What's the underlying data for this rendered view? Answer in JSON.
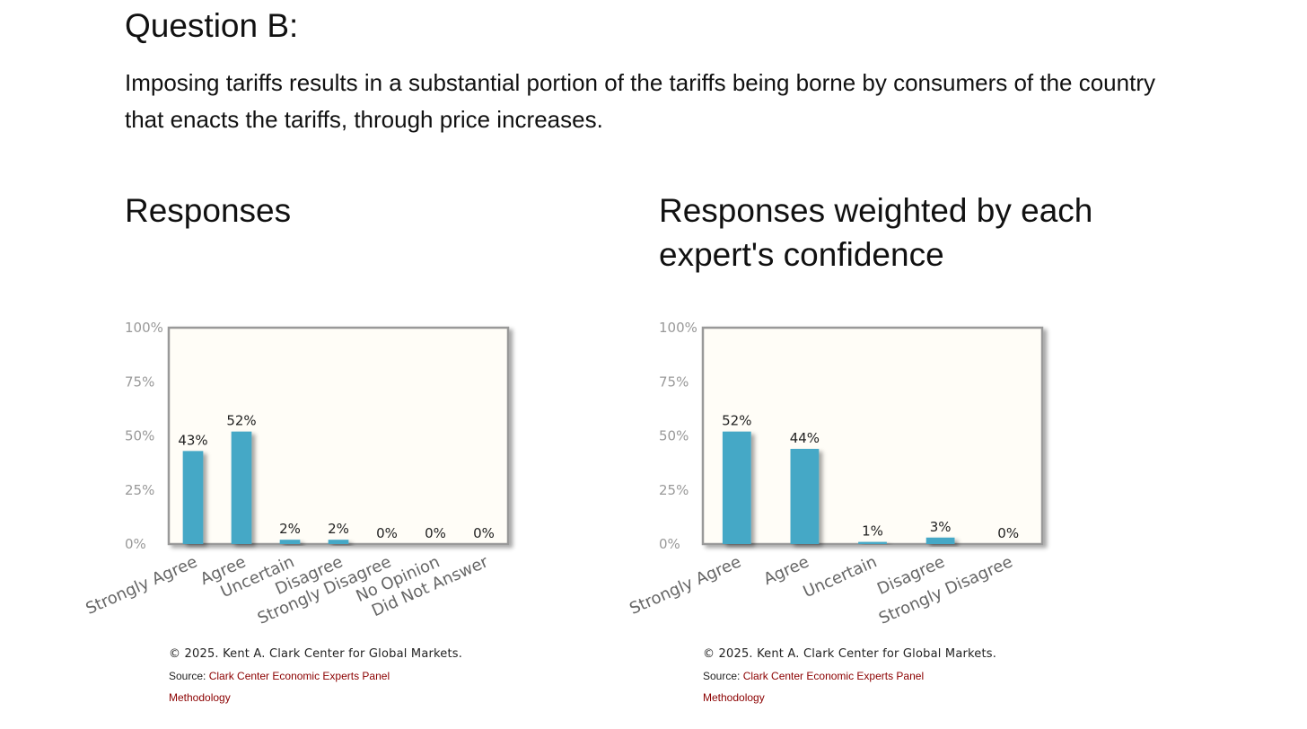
{
  "question": {
    "title": "Question B:",
    "text": "Imposing tariffs results in a substantial portion of the tariffs being borne by consumers of the country that enacts the tariffs, through price increases."
  },
  "charts": {
    "left": {
      "heading": "Responses"
    },
    "right": {
      "heading": "Responses weighted by each expert's confidence"
    }
  },
  "footer": {
    "copyright": "© 2025. Kent A. Clark Center for Global Markets.",
    "source_prefix": "Source: ",
    "source_link": "Clark Center Economic Experts Panel",
    "methodology": "Methodology"
  },
  "colors": {
    "bar": "#45a8c6",
    "plot_bg": "#fffdf7",
    "frame": "#999999",
    "link": "#8b0000"
  },
  "chart_data": [
    {
      "type": "bar",
      "title": "Responses",
      "categories": [
        "Strongly Agree",
        "Agree",
        "Uncertain",
        "Disagree",
        "Strongly Disagree",
        "No Opinion",
        "Did Not Answer"
      ],
      "values": [
        43,
        52,
        2,
        2,
        0,
        0,
        0
      ],
      "data_labels": [
        "43%",
        "52%",
        "2%",
        "2%",
        "0%",
        "0%",
        "0%"
      ],
      "yticks": [
        "0%",
        "25%",
        "50%",
        "75%",
        "100%"
      ],
      "ylim": [
        0,
        100
      ],
      "grid": false
    },
    {
      "type": "bar",
      "title": "Responses weighted by each expert's confidence",
      "categories": [
        "Strongly Agree",
        "Agree",
        "Uncertain",
        "Disagree",
        "Strongly Disagree"
      ],
      "values": [
        52,
        44,
        1,
        3,
        0
      ],
      "data_labels": [
        "52%",
        "44%",
        "1%",
        "3%",
        "0%"
      ],
      "yticks": [
        "0%",
        "25%",
        "50%",
        "75%",
        "100%"
      ],
      "ylim": [
        0,
        100
      ],
      "grid": false
    }
  ]
}
